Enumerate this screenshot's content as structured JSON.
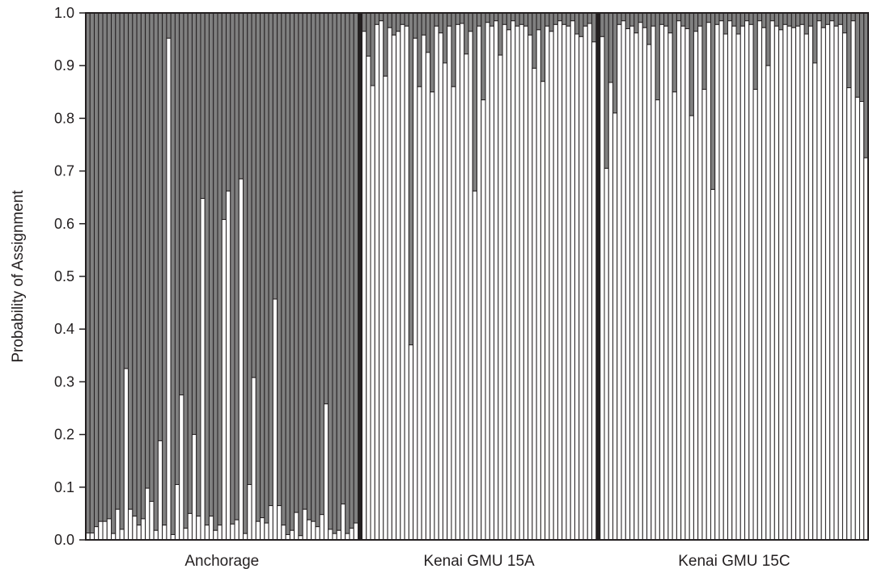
{
  "chart_data": {
    "type": "bar",
    "stacked": true,
    "ylabel": "Probability of Assignment",
    "xlabel": "",
    "ylim": [
      0,
      1
    ],
    "yticks": [
      "0.0",
      "0.1",
      "0.2",
      "0.3",
      "0.4",
      "0.5",
      "0.6",
      "0.7",
      "0.8",
      "0.9",
      "1.0"
    ],
    "grid": false,
    "colors": {
      "assignment": "#ffffff",
      "remainder": "#808080",
      "outline": "#231f20"
    },
    "groups": [
      {
        "label": "Anchorage",
        "values": [
          0.013,
          0.013,
          0.025,
          0.035,
          0.035,
          0.04,
          0.012,
          0.058,
          0.02,
          0.325,
          0.058,
          0.045,
          0.028,
          0.04,
          0.098,
          0.073,
          0.018,
          0.188,
          0.028,
          0.952,
          0.01,
          0.105,
          0.275,
          0.022,
          0.05,
          0.2,
          0.045,
          0.648,
          0.028,
          0.045,
          0.018,
          0.028,
          0.608,
          0.662,
          0.03,
          0.038,
          0.685,
          0.012,
          0.105,
          0.308,
          0.035,
          0.042,
          0.032,
          0.065,
          0.457,
          0.065,
          0.028,
          0.01,
          0.018,
          0.052,
          0.008,
          0.058,
          0.038,
          0.035,
          0.025,
          0.048,
          0.258,
          0.02,
          0.012,
          0.018,
          0.068,
          0.012,
          0.022,
          0.032
        ]
      },
      {
        "label": "Kenai GMU 15A",
        "values": [
          0.965,
          0.918,
          0.862,
          0.978,
          0.985,
          0.88,
          0.972,
          0.958,
          0.965,
          0.978,
          0.975,
          0.37,
          0.952,
          0.86,
          0.958,
          0.925,
          0.85,
          0.975,
          0.962,
          0.905,
          0.975,
          0.86,
          0.978,
          0.98,
          0.922,
          0.965,
          0.662,
          0.975,
          0.835,
          0.982,
          0.975,
          0.985,
          0.92,
          0.978,
          0.968,
          0.985,
          0.975,
          0.978,
          0.975,
          0.958,
          0.895,
          0.968,
          0.87,
          0.975,
          0.965,
          0.978,
          0.985,
          0.978,
          0.975,
          0.985,
          0.96,
          0.955,
          0.975,
          0.98,
          0.945
        ]
      },
      {
        "label": "Kenai GMU 15C",
        "values": [
          0.955,
          0.705,
          0.868,
          0.81,
          0.978,
          0.985,
          0.97,
          0.975,
          0.962,
          0.982,
          0.972,
          0.94,
          0.975,
          0.835,
          0.978,
          0.975,
          0.962,
          0.85,
          0.985,
          0.975,
          0.97,
          0.805,
          0.965,
          0.975,
          0.855,
          0.982,
          0.665,
          0.978,
          0.985,
          0.96,
          0.985,
          0.975,
          0.96,
          0.975,
          0.985,
          0.978,
          0.855,
          0.985,
          0.972,
          0.9,
          0.985,
          0.975,
          0.968,
          0.978,
          0.975,
          0.972,
          0.975,
          0.978,
          0.96,
          0.975,
          0.905,
          0.985,
          0.972,
          0.978,
          0.985,
          0.975,
          0.978,
          0.962,
          0.858,
          0.985,
          0.84,
          0.832,
          0.725
        ]
      }
    ]
  }
}
